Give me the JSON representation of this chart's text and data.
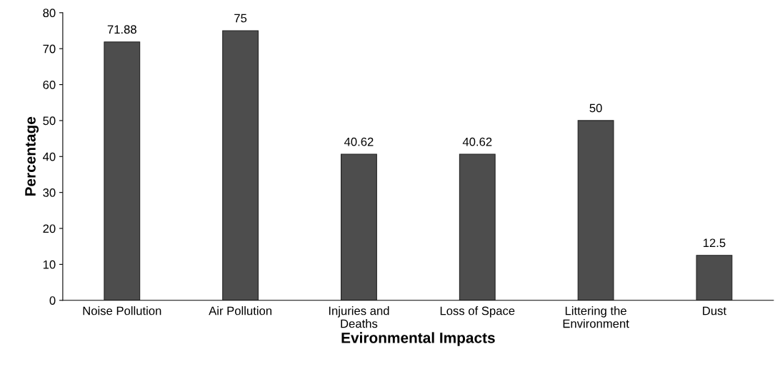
{
  "chart_data": {
    "type": "bar",
    "xlabel": "Evironmental Impacts",
    "ylabel": "Percentage",
    "categories": [
      "Noise Pollution",
      "Air Pollution",
      "Injuries and\nDeaths",
      "Loss of Space",
      "Littering the\nEnvironment",
      "Dust"
    ],
    "values": [
      71.88,
      75,
      40.62,
      40.62,
      50,
      12.5
    ],
    "value_labels": [
      "71.88",
      "75",
      "40.62",
      "40.62",
      "50",
      "12.5"
    ],
    "color": "#4d4d4d",
    "ylim": [
      0,
      80
    ],
    "yticks": [
      0,
      10,
      20,
      30,
      40,
      50,
      60,
      70,
      80
    ],
    "grid": false,
    "legend": false
  }
}
